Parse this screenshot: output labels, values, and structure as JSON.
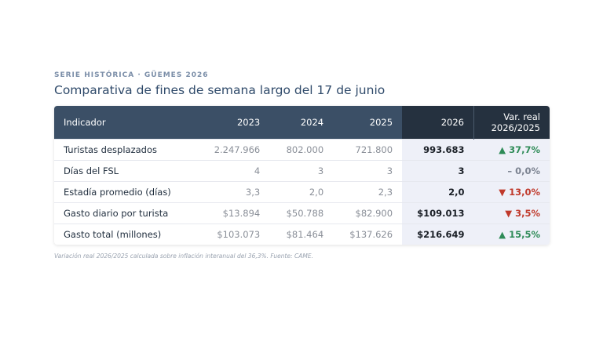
{
  "header": {
    "kicker": "SERIE HISTÓRICA · GÜEMES 2026",
    "title": "Comparativa de fines de semana largo del 17 de junio"
  },
  "table": {
    "columns": [
      "Indicador",
      "2023",
      "2024",
      "2025",
      "2026",
      "Var. real 2026/2025"
    ],
    "rows": [
      [
        "Turistas desplazados",
        "2.247.966",
        "802.000",
        "721.800",
        "993.683",
        "▲ 37,7%"
      ],
      [
        "Días del FSL",
        "4",
        "3",
        "3",
        "3",
        "– 0,0%"
      ],
      [
        "Estadía promedio (días)",
        "3,3",
        "2,0",
        "2,3",
        "2,0",
        "▼ 13,0%"
      ],
      [
        "Gasto diario por turista",
        "$13.894",
        "$50.788",
        "$82.900",
        "$109.013",
        "▼ 3,5%"
      ],
      [
        "Gasto total (millones)",
        "$103.073",
        "$81.464",
        "$137.626",
        "$216.649",
        "▲ 15,5%"
      ]
    ]
  },
  "footnote": "Variación real 2026/2025 calculada sobre inflación interanual del 36,3%. Fuente: CAME."
}
